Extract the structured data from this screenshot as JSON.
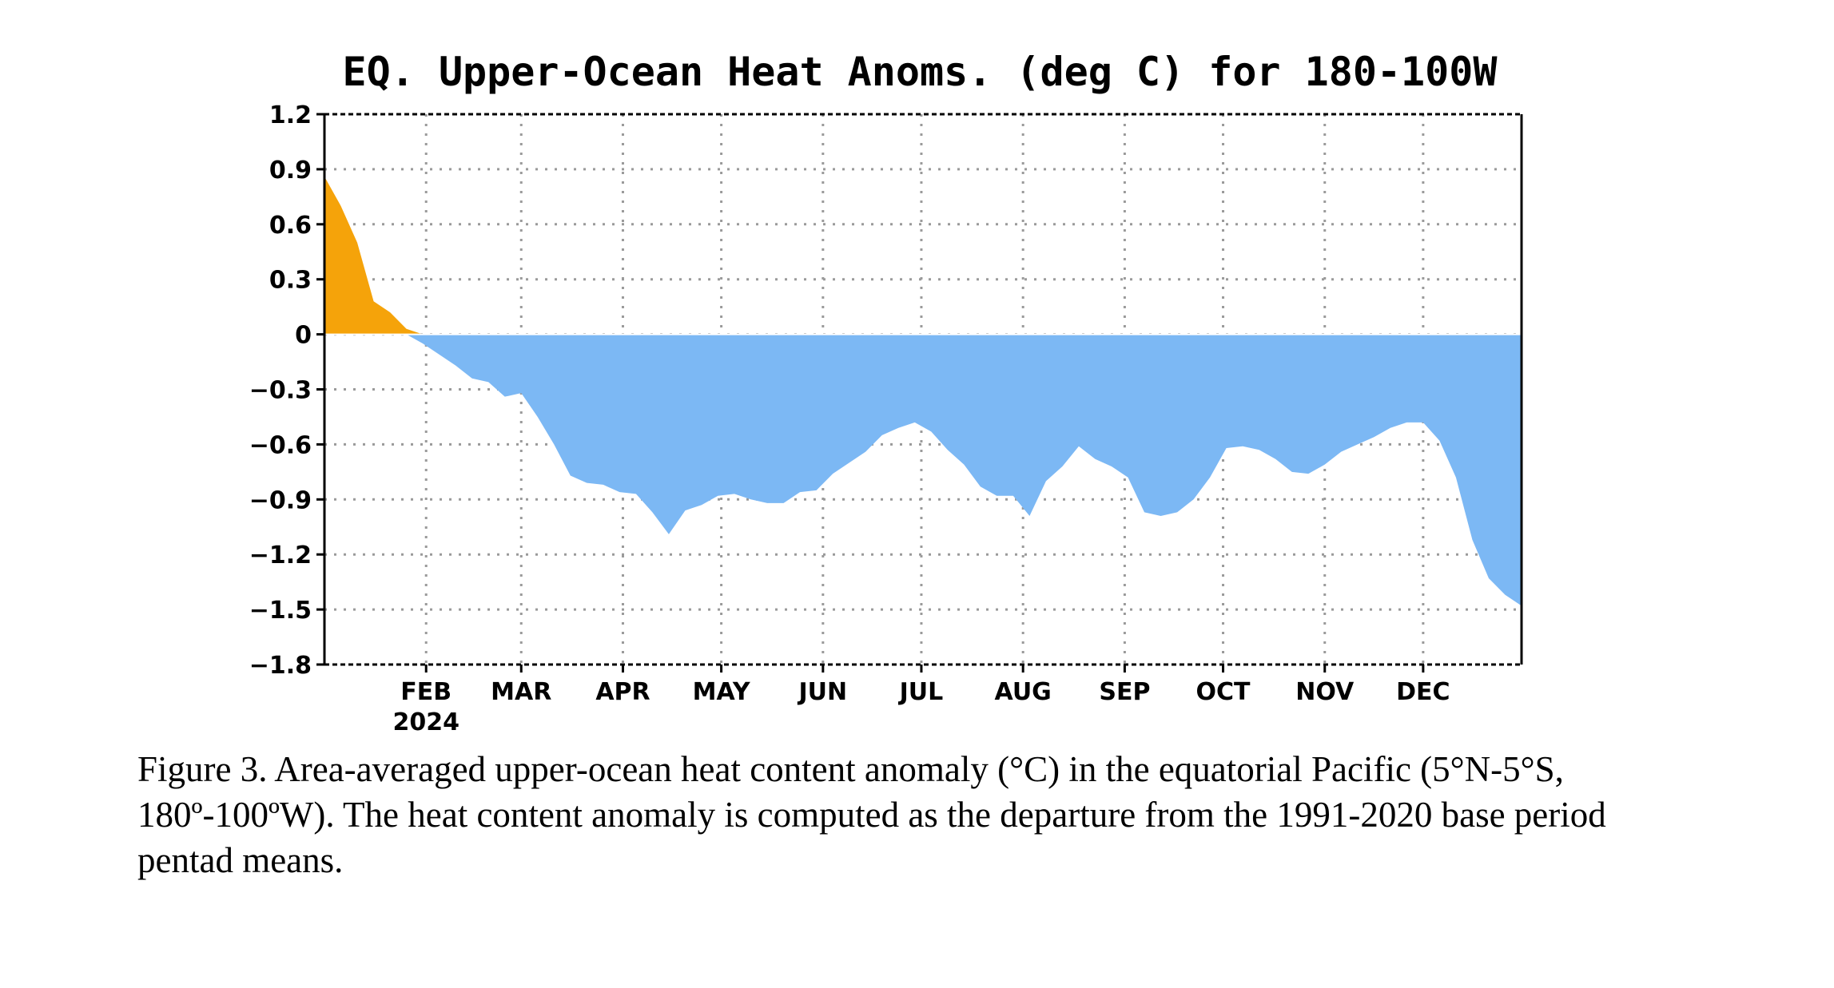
{
  "chart_data": {
    "type": "area",
    "title": "EQ. Upper-Ocean Heat Anoms. (deg C) for 180-100W",
    "xlabel": "",
    "ylabel": "",
    "ylim": [
      -1.8,
      1.2
    ],
    "yticks": [
      1.2,
      0.9,
      0.6,
      0.3,
      0,
      -0.3,
      -0.6,
      -0.9,
      -1.2,
      -1.5,
      -1.8
    ],
    "ytick_labels": [
      "1.2",
      "0.9",
      "0.6",
      "0.3",
      "0",
      "−0.3",
      "−0.6",
      "−0.9",
      "−1.2",
      "−1.5",
      "−1.8"
    ],
    "xlim": [
      "2024-01-01",
      "2024-12-31"
    ],
    "xticks": [
      {
        "date": "2024-02-01",
        "label": "FEB"
      },
      {
        "date": "2024-03-01",
        "label": "MAR"
      },
      {
        "date": "2024-04-01",
        "label": "APR"
      },
      {
        "date": "2024-05-01",
        "label": "MAY"
      },
      {
        "date": "2024-06-01",
        "label": "JUN"
      },
      {
        "date": "2024-07-01",
        "label": "JUL"
      },
      {
        "date": "2024-08-01",
        "label": "AUG"
      },
      {
        "date": "2024-09-01",
        "label": "SEP"
      },
      {
        "date": "2024-10-01",
        "label": "OCT"
      },
      {
        "date": "2024-11-01",
        "label": "NOV"
      },
      {
        "date": "2024-12-01",
        "label": "DEC"
      }
    ],
    "year_label": "2024",
    "grid": true,
    "colors": {
      "positive": "#f5a30a",
      "negative": "#7cb8f4"
    },
    "x": [
      "2024-01-01",
      "2024-01-06",
      "2024-01-11",
      "2024-01-16",
      "2024-01-21",
      "2024-01-26",
      "2024-01-31",
      "2024-02-05",
      "2024-02-10",
      "2024-02-15",
      "2024-02-20",
      "2024-02-25",
      "2024-03-01",
      "2024-03-06",
      "2024-03-11",
      "2024-03-16",
      "2024-03-21",
      "2024-03-26",
      "2024-03-31",
      "2024-04-05",
      "2024-04-10",
      "2024-04-15",
      "2024-04-20",
      "2024-04-25",
      "2024-04-30",
      "2024-05-05",
      "2024-05-10",
      "2024-05-15",
      "2024-05-20",
      "2024-05-25",
      "2024-05-30",
      "2024-06-04",
      "2024-06-09",
      "2024-06-14",
      "2024-06-19",
      "2024-06-24",
      "2024-06-29",
      "2024-07-04",
      "2024-07-09",
      "2024-07-14",
      "2024-07-19",
      "2024-07-24",
      "2024-07-29",
      "2024-08-03",
      "2024-08-08",
      "2024-08-13",
      "2024-08-18",
      "2024-08-23",
      "2024-08-28",
      "2024-09-02",
      "2024-09-07",
      "2024-09-12",
      "2024-09-17",
      "2024-09-22",
      "2024-09-27",
      "2024-10-02",
      "2024-10-07",
      "2024-10-12",
      "2024-10-17",
      "2024-10-22",
      "2024-10-27",
      "2024-11-01",
      "2024-11-06",
      "2024-11-11",
      "2024-11-16",
      "2024-11-21",
      "2024-11-26",
      "2024-12-01",
      "2024-12-06",
      "2024-12-11",
      "2024-12-16",
      "2024-12-21",
      "2024-12-26",
      "2024-12-31"
    ],
    "series": [
      {
        "values": [
          0.86,
          0.7,
          0.5,
          0.18,
          0.12,
          0.03,
          -0.05,
          -0.11,
          -0.17,
          -0.24,
          -0.26,
          -0.34,
          -0.32,
          -0.45,
          -0.6,
          -0.77,
          -0.81,
          -0.82,
          -0.86,
          -0.87,
          -0.97,
          -1.09,
          -0.96,
          -0.93,
          -0.88,
          -0.87,
          -0.9,
          -0.92,
          -0.92,
          -0.86,
          -0.85,
          -0.76,
          -0.7,
          -0.64,
          -0.55,
          -0.51,
          -0.48,
          -0.53,
          -0.63,
          -0.71,
          -0.83,
          -0.88,
          -0.88,
          -0.99,
          -0.8,
          -0.72,
          -0.61,
          -0.68,
          -0.72,
          -0.78,
          -0.97,
          -0.99,
          -0.97,
          -0.9,
          -0.78,
          -0.62,
          -0.61,
          -0.63,
          -0.68,
          -0.75,
          -0.76,
          -0.71,
          -0.64,
          -0.6,
          -0.56,
          -0.51,
          -0.48,
          -0.48,
          -0.58,
          -0.78,
          -1.12,
          -1.33,
          -1.42,
          -1.48
        ]
      }
    ]
  },
  "caption": "Figure 3. Area-averaged upper-ocean heat content anomaly (°C) in the equatorial Pacific (5°N-5°S, 180º-100ºW). The heat content anomaly is computed as the departure from the 1991-2020 base period pentad means."
}
